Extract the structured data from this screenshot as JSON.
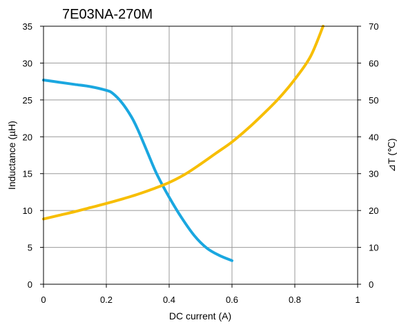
{
  "chart_data": {
    "type": "line",
    "title": "7E03NA-270M",
    "xlabel": "DC current (A)",
    "ylabel_left": "Inductance (µH)",
    "ylabel_right": "⊿T (℃)",
    "xlim": [
      0,
      1
    ],
    "ylim_left": [
      0,
      35
    ],
    "ylim_right": [
      0,
      70
    ],
    "x_ticks": [
      "0",
      "0.2",
      "0.4",
      "0.6",
      "0.8",
      "1"
    ],
    "y_left_ticks": [
      "0",
      "5",
      "10",
      "15",
      "20",
      "25",
      "30",
      "35"
    ],
    "y_right_ticks": [
      "0",
      "10",
      "20",
      "30",
      "40",
      "50",
      "60",
      "70"
    ],
    "grid": true,
    "series": [
      {
        "axis": "left",
        "color": "#1aa7e0",
        "x": [
          0,
          0.05,
          0.1,
          0.15,
          0.2,
          0.22,
          0.25,
          0.28,
          0.3,
          0.33,
          0.36,
          0.4,
          0.44,
          0.48,
          0.52,
          0.56,
          0.6
        ],
        "values": [
          27.7,
          27.4,
          27.1,
          26.8,
          26.3,
          25.9,
          24.6,
          22.7,
          21.0,
          18.0,
          15.0,
          11.8,
          9.0,
          6.6,
          4.9,
          3.9,
          3.2
        ]
      },
      {
        "axis": "right",
        "color": "#f7be00",
        "x": [
          0,
          0.05,
          0.1,
          0.15,
          0.2,
          0.25,
          0.3,
          0.35,
          0.4,
          0.45,
          0.5,
          0.55,
          0.6,
          0.65,
          0.7,
          0.75,
          0.8,
          0.85,
          0.89
        ],
        "values": [
          17.7,
          18.7,
          19.7,
          20.8,
          21.9,
          23.1,
          24.4,
          25.9,
          27.6,
          29.8,
          32.6,
          35.6,
          38.6,
          42.2,
          46.2,
          50.5,
          55.6,
          61.8,
          70.0
        ]
      }
    ]
  }
}
